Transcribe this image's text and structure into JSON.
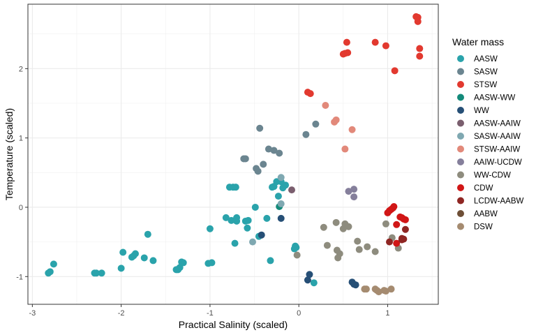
{
  "chart_data": {
    "type": "scatter",
    "xlabel": "Practical Salinity (scaled)",
    "ylabel": "Temperature (scaled)",
    "xlim": [
      -3.05,
      1.57
    ],
    "ylim": [
      -1.4,
      2.93
    ],
    "x_ticks": [
      -3,
      -2,
      -1,
      0,
      1
    ],
    "y_ticks": [
      -1,
      0,
      1,
      2
    ],
    "grid": true,
    "legend_title": "Water mass",
    "legend_position": "right",
    "series": [
      {
        "name": "AASW",
        "color": "#2AA3AB",
        "points": [
          [
            -2.82,
            -0.95
          ],
          [
            -2.8,
            -0.93
          ],
          [
            -2.76,
            -0.82
          ],
          [
            -2.3,
            -0.95
          ],
          [
            -2.28,
            -0.95
          ],
          [
            -2.22,
            -0.95
          ],
          [
            -2.0,
            -0.88
          ],
          [
            -1.98,
            -0.65
          ],
          [
            -1.88,
            -0.72
          ],
          [
            -1.86,
            -0.7
          ],
          [
            -1.84,
            -0.67
          ],
          [
            -1.74,
            -0.73
          ],
          [
            -1.7,
            -0.39
          ],
          [
            -1.64,
            -0.77
          ],
          [
            -1.38,
            -0.9
          ],
          [
            -1.36,
            -0.9
          ],
          [
            -1.34,
            -0.87
          ],
          [
            -1.32,
            -0.79
          ],
          [
            -1.3,
            -0.8
          ],
          [
            -1.02,
            -0.81
          ],
          [
            -1.0,
            -0.31
          ],
          [
            -0.98,
            -0.8
          ],
          [
            -0.82,
            -0.15
          ],
          [
            -0.78,
            0.29
          ],
          [
            -0.76,
            -0.19
          ],
          [
            -0.74,
            0.29
          ],
          [
            -0.72,
            -0.52
          ],
          [
            -0.71,
            0.29
          ],
          [
            -0.7,
            -0.15
          ],
          [
            -0.7,
            -0.2
          ],
          [
            -0.6,
            -0.2
          ],
          [
            -0.58,
            -0.3
          ],
          [
            -0.57,
            -0.19
          ],
          [
            -0.49,
            0.0
          ],
          [
            -0.45,
            -0.42
          ],
          [
            -0.36,
            -0.16
          ],
          [
            -0.32,
            -0.77
          ],
          [
            -0.3,
            0.29
          ],
          [
            -0.28,
            0.3
          ],
          [
            -0.25,
            0.37
          ],
          [
            -0.23,
            0.16
          ],
          [
            -0.2,
            0.37
          ],
          [
            -0.18,
            0.28
          ],
          [
            -0.15,
            0.32
          ],
          [
            -0.05,
            -0.6
          ],
          [
            -0.04,
            -0.56
          ],
          [
            -0.03,
            -0.58
          ],
          [
            0.17,
            -1.09
          ]
        ]
      },
      {
        "name": "SASW",
        "color": "#6B8590",
        "points": [
          [
            -0.44,
            1.14
          ],
          [
            -0.34,
            0.84
          ],
          [
            -0.28,
            0.82
          ],
          [
            -0.22,
            0.78
          ],
          [
            -0.62,
            0.7
          ],
          [
            -0.6,
            0.7
          ],
          [
            -0.48,
            0.56
          ],
          [
            -0.46,
            0.52
          ],
          [
            -0.4,
            0.62
          ],
          [
            0.08,
            1.05
          ],
          [
            0.19,
            1.2
          ]
        ]
      },
      {
        "name": "STSW",
        "color": "#E2392F",
        "points": [
          [
            1.32,
            2.75
          ],
          [
            1.34,
            2.74
          ],
          [
            1.34,
            2.68
          ],
          [
            1.36,
            2.29
          ],
          [
            1.36,
            2.18
          ],
          [
            1.08,
            1.97
          ],
          [
            0.86,
            2.38
          ],
          [
            0.98,
            2.33
          ],
          [
            0.54,
            2.38
          ],
          [
            0.52,
            2.22
          ],
          [
            0.55,
            2.23
          ],
          [
            0.5,
            2.21
          ],
          [
            0.1,
            1.66
          ],
          [
            0.13,
            1.64
          ]
        ]
      },
      {
        "name": "AASW-WW",
        "color": "#138A7A",
        "points": [
          [
            -0.22,
            0.01
          ]
        ]
      },
      {
        "name": "WW",
        "color": "#264F76",
        "points": [
          [
            -0.42,
            -0.4
          ],
          [
            -0.2,
            -0.16
          ],
          [
            0.1,
            -1.05
          ],
          [
            0.12,
            -0.97
          ],
          [
            0.6,
            -1.08
          ],
          [
            0.62,
            -1.11
          ],
          [
            0.64,
            -1.12
          ]
        ]
      },
      {
        "name": "AASW-AAIW",
        "color": "#7A5E6E",
        "points": [
          [
            -0.08,
            0.25
          ]
        ]
      },
      {
        "name": "SASW-AAIW",
        "color": "#7FA8B1",
        "points": [
          [
            -0.2,
            0.43
          ],
          [
            -0.52,
            -0.5
          ],
          [
            -0.2,
            0.05
          ]
        ]
      },
      {
        "name": "STSW-AAIW",
        "color": "#E2897A",
        "points": [
          [
            0.3,
            1.47
          ],
          [
            0.4,
            1.23
          ],
          [
            0.42,
            1.26
          ],
          [
            0.6,
            1.12
          ],
          [
            0.52,
            0.84
          ]
        ]
      },
      {
        "name": "AAIW-UCDW",
        "color": "#857F9B",
        "points": [
          [
            0.56,
            0.23
          ],
          [
            0.62,
            0.26
          ],
          [
            0.62,
            0.15
          ]
        ]
      },
      {
        "name": "WW-CDW",
        "color": "#8E8C7E",
        "points": [
          [
            -0.02,
            -0.69
          ],
          [
            0.28,
            -0.29
          ],
          [
            0.32,
            -0.55
          ],
          [
            0.42,
            -0.22
          ],
          [
            0.43,
            -0.62
          ],
          [
            0.46,
            -0.67
          ],
          [
            0.44,
            -0.73
          ],
          [
            0.5,
            -0.31
          ],
          [
            0.52,
            -0.24
          ],
          [
            0.56,
            -0.28
          ],
          [
            0.66,
            -0.49
          ],
          [
            0.68,
            -0.61
          ],
          [
            0.77,
            -0.57
          ],
          [
            0.86,
            -0.64
          ],
          [
            0.98,
            -0.24
          ],
          [
            1.05,
            -0.44
          ],
          [
            1.12,
            -0.59
          ]
        ]
      },
      {
        "name": "CDW",
        "color": "#D11616",
        "points": [
          [
            1.0,
            -0.08
          ],
          [
            1.02,
            -0.05
          ],
          [
            1.04,
            -0.03
          ],
          [
            1.06,
            -0.01
          ],
          [
            1.07,
            0.01
          ],
          [
            1.1,
            -0.25
          ],
          [
            1.14,
            -0.14
          ],
          [
            1.16,
            -0.15
          ],
          [
            1.18,
            -0.17
          ],
          [
            1.2,
            -0.18
          ],
          [
            1.1,
            -0.52
          ]
        ]
      },
      {
        "name": "LCDW-AABW",
        "color": "#8F2623",
        "points": [
          [
            1.02,
            -0.5
          ],
          [
            1.16,
            -0.45
          ],
          [
            1.18,
            -0.46
          ],
          [
            1.16,
            -0.47
          ],
          [
            1.2,
            -0.32
          ]
        ]
      },
      {
        "name": "AABW",
        "color": "#6E4F37",
        "points": []
      },
      {
        "name": "DSW",
        "color": "#A58B70",
        "points": [
          [
            0.74,
            -1.18
          ],
          [
            0.76,
            -1.18
          ],
          [
            0.86,
            -1.18
          ],
          [
            0.88,
            -1.2
          ],
          [
            0.9,
            -1.22
          ],
          [
            0.96,
            -1.2
          ],
          [
            0.98,
            -1.21
          ],
          [
            1.04,
            -1.18
          ]
        ]
      }
    ]
  }
}
